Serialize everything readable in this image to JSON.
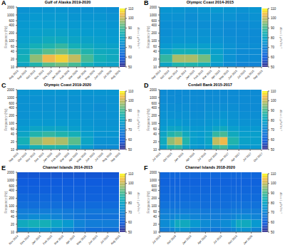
{
  "chart_data": [
    {
      "type": "heatmap",
      "label": "A",
      "title": "Gulf of Alaska 2019-2020",
      "ylabel": "Frequency (Hz)",
      "log": "y",
      "xlim": [
        0,
        12
      ],
      "xticks": [
        {
          "value": 0,
          "label": "Aug 2019"
        },
        {
          "value": 1,
          "label": "Sep 2019"
        },
        {
          "value": 2,
          "label": "Oct 2019"
        },
        {
          "value": 3,
          "label": "Nov 2019"
        },
        {
          "value": 4,
          "label": "Dec 2019"
        },
        {
          "value": 5,
          "label": "Jan 2020"
        },
        {
          "value": 6,
          "label": "Feb 2020"
        },
        {
          "value": 7,
          "label": "Mar 2020"
        },
        {
          "value": 8,
          "label": "Apr 2020"
        },
        {
          "value": 9,
          "label": "May 2020"
        },
        {
          "value": 10,
          "label": "Jun 2020"
        },
        {
          "value": 11,
          "label": "Jul 2020"
        },
        {
          "value": 12,
          "label": "Aug 2020"
        }
      ],
      "ylim": [
        10,
        2000
      ],
      "yticks": [
        10,
        20,
        40,
        60,
        100,
        200,
        400,
        600,
        1000,
        2000
      ],
      "time_edges": [
        0,
        1.5,
        3,
        4.5,
        6,
        7.5,
        9,
        10.5,
        12
      ],
      "freq_edges": [
        10,
        15,
        30,
        50,
        80,
        150,
        300,
        600,
        1200,
        2000
      ],
      "cells": [
        [
          80,
          86,
          92,
          94,
          90,
          84,
          80,
          79
        ],
        [
          84,
          96,
          104,
          106,
          100,
          90,
          84,
          82
        ],
        [
          82,
          88,
          92,
          94,
          90,
          86,
          82,
          81
        ],
        [
          80,
          84,
          86,
          88,
          84,
          82,
          80,
          79
        ],
        [
          78,
          80,
          82,
          82,
          80,
          79,
          78,
          77
        ],
        [
          77,
          78,
          79,
          79,
          78,
          77,
          77,
          76
        ],
        [
          76,
          77,
          77,
          77,
          76,
          76,
          76,
          75
        ],
        [
          75,
          76,
          76,
          76,
          75,
          75,
          75,
          74
        ],
        [
          74,
          75,
          75,
          75,
          74,
          74,
          74,
          73
        ]
      ],
      "colorbar": {
        "range": [
          50,
          110
        ],
        "ticks": [
          50,
          60,
          70,
          80,
          90,
          100,
          110
        ],
        "label": "dB re 1 μPa²Hz⁻¹"
      }
    },
    {
      "type": "heatmap",
      "label": "B",
      "title": "Olympic Coast 2014-2015",
      "ylabel": "Frequency (Hz)",
      "log": "y",
      "xlim": [
        0,
        12
      ],
      "xticks": [
        {
          "value": 0,
          "label": "Sep 2014"
        },
        {
          "value": 1,
          "label": "Oct 2014"
        },
        {
          "value": 2,
          "label": "Nov 2014"
        },
        {
          "value": 3,
          "label": "Dec 2014"
        },
        {
          "value": 4,
          "label": "Jan 2015"
        },
        {
          "value": 5,
          "label": "Feb 2015"
        },
        {
          "value": 6,
          "label": "Mar 2015"
        },
        {
          "value": 7,
          "label": "Apr 2015"
        },
        {
          "value": 8,
          "label": "May 2015"
        },
        {
          "value": 9,
          "label": "Jun 2015"
        },
        {
          "value": 10,
          "label": "Jul 2015"
        },
        {
          "value": 11,
          "label": "Aug 2015"
        },
        {
          "value": 12,
          "label": "Sep 2015"
        }
      ],
      "ylim": [
        10,
        2000
      ],
      "yticks": [
        10,
        20,
        40,
        60,
        100,
        200,
        400,
        600,
        1000,
        2000
      ],
      "time_edges": [
        0,
        1.5,
        3,
        4.5,
        6,
        7.5,
        9,
        10.5,
        12
      ],
      "freq_edges": [
        10,
        15,
        30,
        50,
        80,
        150,
        300,
        600,
        1200,
        2000
      ],
      "cells": [
        [
          80,
          86,
          86,
          84,
          76,
          72,
          70,
          70
        ],
        [
          88,
          98,
          98,
          94,
          80,
          74,
          72,
          72
        ],
        [
          80,
          84,
          84,
          82,
          78,
          74,
          72,
          72
        ],
        [
          76,
          78,
          78,
          78,
          76,
          74,
          73,
          73
        ],
        [
          74,
          75,
          75,
          75,
          74,
          73,
          72,
          72
        ],
        [
          73,
          74,
          74,
          74,
          73,
          72,
          72,
          72
        ],
        [
          73,
          73,
          73,
          73,
          73,
          72,
          72,
          73
        ],
        [
          74,
          74,
          73,
          74,
          74,
          74,
          73,
          74
        ],
        [
          75,
          75,
          74,
          75,
          76,
          75,
          74,
          75
        ]
      ],
      "colorbar": {
        "range": [
          50,
          110
        ],
        "ticks": [
          50,
          60,
          70,
          80,
          90,
          100,
          110
        ],
        "label": "dB re 1 μPa²Hz⁻¹"
      }
    },
    {
      "type": "heatmap",
      "label": "C",
      "title": "Olympic Coast 2019-2020",
      "ylabel": "Frequency (Hz)",
      "log": "y",
      "xlim": [
        0,
        12
      ],
      "xticks": [
        {
          "value": 0,
          "label": "Sep 2019"
        },
        {
          "value": 1,
          "label": "Oct 2019"
        },
        {
          "value": 2,
          "label": "Nov 2019"
        },
        {
          "value": 3,
          "label": "Dec 2019"
        },
        {
          "value": 4,
          "label": "Jan 2020"
        },
        {
          "value": 5,
          "label": "Feb 2020"
        },
        {
          "value": 6,
          "label": "Mar 2020"
        },
        {
          "value": 7,
          "label": "Apr 2020"
        },
        {
          "value": 8,
          "label": "May 2020"
        },
        {
          "value": 9,
          "label": "Jun 2020"
        },
        {
          "value": 10,
          "label": "Jul 2020"
        },
        {
          "value": 11,
          "label": "Aug 2020"
        },
        {
          "value": 12,
          "label": "Sep 2020"
        }
      ],
      "ylim": [
        10,
        2000
      ],
      "yticks": [
        10,
        20,
        40,
        60,
        100,
        200,
        400,
        600,
        1000,
        2000
      ],
      "time_edges": [
        0,
        1.5,
        3,
        4.5,
        6,
        7.5,
        9,
        10.5,
        12
      ],
      "freq_edges": [
        10,
        15,
        30,
        50,
        80,
        150,
        300,
        600,
        1200,
        2000
      ],
      "cells": [
        [
          78,
          84,
          86,
          86,
          82,
          76,
          72,
          72
        ],
        [
          84,
          96,
          100,
          98,
          92,
          80,
          74,
          74
        ],
        [
          80,
          86,
          88,
          86,
          84,
          78,
          75,
          75
        ],
        [
          77,
          80,
          80,
          80,
          78,
          76,
          75,
          75
        ],
        [
          75,
          76,
          76,
          76,
          76,
          75,
          74,
          74
        ],
        [
          74,
          75,
          75,
          75,
          75,
          74,
          74,
          74
        ],
        [
          74,
          74,
          74,
          74,
          74,
          74,
          73,
          74
        ],
        [
          74,
          74,
          74,
          74,
          74,
          74,
          74,
          74
        ],
        [
          75,
          75,
          75,
          75,
          75,
          75,
          75,
          75
        ]
      ],
      "colorbar": {
        "range": [
          50,
          110
        ],
        "ticks": [
          50,
          60,
          70,
          80,
          90,
          100,
          110
        ],
        "label": "dB re 1 μPa²Hz⁻¹"
      }
    },
    {
      "type": "heatmap",
      "label": "D",
      "title": "Cordell Bank 2015-2017",
      "ylabel": "Frequency (Hz)",
      "log": "y",
      "xlim": [
        0,
        27
      ],
      "xticks": [
        {
          "value": 0,
          "label": "Jul 2015"
        },
        {
          "value": 3,
          "label": "Oct 2015"
        },
        {
          "value": 6,
          "label": "Jan 2016"
        },
        {
          "value": 9,
          "label": "Apr 2016"
        },
        {
          "value": 12,
          "label": "Jul 2016"
        },
        {
          "value": 15,
          "label": "Oct 2016"
        },
        {
          "value": 18,
          "label": "Jan 2017"
        },
        {
          "value": 21,
          "label": "Apr 2017"
        },
        {
          "value": 24,
          "label": "Jul 2017"
        },
        {
          "value": 27,
          "label": "Oct 2017"
        }
      ],
      "ylim": [
        10,
        2000
      ],
      "yticks": [
        10,
        20,
        40,
        60,
        100,
        200,
        400,
        600,
        1000,
        2000
      ],
      "time_edges": [
        0,
        2,
        4,
        6,
        8,
        10,
        12,
        14,
        16,
        18,
        21,
        24,
        27
      ],
      "freq_edges": [
        10,
        15,
        30,
        50,
        80,
        150,
        300,
        600,
        1200,
        2000
      ],
      "cells": [
        [
          78,
          86,
          88,
          80,
          76,
          75,
          77,
          88,
          90,
          80,
          76,
          76
        ],
        [
          82,
          96,
          100,
          86,
          78,
          77,
          80,
          100,
          104,
          86,
          79,
          78
        ],
        [
          80,
          86,
          88,
          82,
          78,
          77,
          79,
          88,
          90,
          82,
          78,
          78
        ],
        [
          77,
          80,
          80,
          78,
          76,
          76,
          77,
          80,
          82,
          78,
          76,
          76
        ],
        [
          75,
          76,
          76,
          75,
          74,
          74,
          75,
          76,
          77,
          75,
          74,
          74
        ],
        [
          74,
          74,
          74,
          74,
          73,
          73,
          74,
          74,
          75,
          74,
          73,
          73
        ],
        [
          73,
          73,
          73,
          73,
          72,
          72,
          73,
          73,
          73,
          73,
          72,
          72
        ],
        [
          72,
          72,
          72,
          72,
          72,
          72,
          72,
          72,
          72,
          72,
          72,
          72
        ],
        [
          72,
          72,
          72,
          72,
          72,
          72,
          72,
          72,
          72,
          72,
          72,
          72
        ]
      ],
      "colorbar": {
        "range": [
          50,
          110
        ],
        "ticks": [
          50,
          60,
          70,
          80,
          90,
          100,
          110
        ],
        "label": "dB re 1 μPa²Hz⁻¹"
      }
    },
    {
      "type": "heatmap",
      "label": "E",
      "title": "Channel Islands 2014-2015",
      "ylabel": "Frequency (Hz)",
      "log": "y",
      "xlim": [
        0,
        9
      ],
      "xticks": [
        {
          "value": 0,
          "label": "Nov 2014"
        },
        {
          "value": 1,
          "label": "Dec 2014"
        },
        {
          "value": 2,
          "label": "Jan 2015"
        },
        {
          "value": 3,
          "label": "Feb 2015"
        },
        {
          "value": 4,
          "label": "Mar 2015"
        },
        {
          "value": 5,
          "label": "Apr 2015"
        },
        {
          "value": 6,
          "label": "May 2015"
        },
        {
          "value": 7,
          "label": "Jun 2015"
        },
        {
          "value": 8,
          "label": "Jul 2015"
        },
        {
          "value": 9,
          "label": "Aug 2015"
        }
      ],
      "ylim": [
        10,
        2000
      ],
      "yticks": [
        10,
        20,
        40,
        60,
        100,
        200,
        400,
        600,
        1000,
        2000
      ],
      "time_edges": [
        0,
        1,
        2,
        3,
        4,
        5,
        6,
        7.5,
        9
      ],
      "freq_edges": [
        10,
        15,
        30,
        50,
        80,
        150,
        300,
        600,
        1200,
        2000
      ],
      "cells": [
        [
          72,
          74,
          74,
          72,
          70,
          66,
          64,
          64
        ],
        [
          82,
          84,
          84,
          80,
          76,
          70,
          68,
          68
        ],
        [
          70,
          72,
          72,
          70,
          68,
          66,
          65,
          65
        ],
        [
          68,
          68,
          68,
          68,
          67,
          66,
          66,
          66
        ],
        [
          64,
          64,
          64,
          64,
          63,
          63,
          63,
          63
        ],
        [
          62,
          62,
          62,
          62,
          61,
          61,
          61,
          61
        ],
        [
          60,
          60,
          60,
          60,
          60,
          60,
          60,
          60
        ],
        [
          59,
          59,
          59,
          59,
          59,
          59,
          59,
          59
        ],
        [
          58,
          58,
          58,
          58,
          58,
          58,
          58,
          58
        ]
      ],
      "colorbar": {
        "range": [
          50,
          110
        ],
        "ticks": [
          50,
          60,
          70,
          80,
          90,
          100,
          110
        ],
        "label": "dB re 1 μPa²Hz⁻¹"
      }
    },
    {
      "type": "heatmap",
      "label": "F",
      "title": "Channel Islands 2018-2020",
      "ylabel": "Frequency (Hz)",
      "log": "y",
      "xlim": [
        0,
        20
      ],
      "xticks": [
        {
          "value": 0,
          "label": "Jul 2018"
        },
        {
          "value": 3,
          "label": "Oct 2018"
        },
        {
          "value": 6,
          "label": "Jan 2019"
        },
        {
          "value": 9,
          "label": "Apr 2019"
        },
        {
          "value": 12,
          "label": "Jul 2019"
        },
        {
          "value": 15,
          "label": "Oct 2019"
        },
        {
          "value": 18,
          "label": "Jan 2020"
        }
      ],
      "ylim": [
        10,
        2000
      ],
      "yticks": [
        10,
        20,
        40,
        60,
        100,
        200,
        400,
        600,
        1000,
        2000
      ],
      "time_edges": [
        0,
        2,
        3,
        4,
        6,
        8,
        10,
        12,
        14,
        15,
        16,
        18,
        20
      ],
      "freq_edges": [
        10,
        15,
        30,
        50,
        80,
        150,
        300,
        600,
        1200,
        2000
      ],
      "cells": [
        [
          68,
          70,
          74,
          74,
          70,
          68,
          66,
          68,
          70,
          74,
          74,
          70
        ],
        [
          72,
          76,
          82,
          82,
          76,
          72,
          70,
          72,
          76,
          82,
          82,
          76
        ],
        [
          70,
          70,
          72,
          72,
          70,
          69,
          68,
          69,
          70,
          72,
          72,
          70
        ],
        [
          68,
          68,
          68,
          68,
          68,
          67,
          67,
          67,
          68,
          68,
          68,
          68
        ],
        [
          65,
          65,
          65,
          65,
          65,
          64,
          64,
          64,
          65,
          65,
          65,
          65
        ],
        [
          63,
          63,
          63,
          63,
          63,
          63,
          63,
          63,
          63,
          63,
          63,
          63
        ],
        [
          62,
          62,
          62,
          62,
          62,
          62,
          62,
          62,
          62,
          62,
          62,
          62
        ],
        [
          61,
          61,
          61,
          61,
          61,
          61,
          61,
          61,
          61,
          61,
          61,
          61
        ],
        [
          62,
          62,
          62,
          62,
          62,
          62,
          62,
          62,
          62,
          62,
          62,
          62
        ]
      ],
      "colorbar": {
        "range": [
          50,
          110
        ],
        "ticks": [
          50,
          60,
          70,
          80,
          90,
          100,
          110
        ],
        "label": "dB re 1 μPa²Hz⁻¹"
      }
    }
  ]
}
